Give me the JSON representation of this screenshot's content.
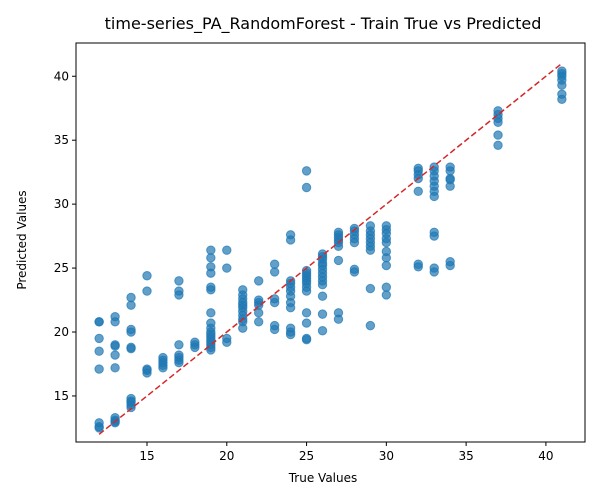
{
  "chart_data": {
    "type": "scatter",
    "title": "time-series_PA_RandomForest - Train True vs Predicted",
    "xlabel": "True Values",
    "ylabel": "Predicted Values",
    "xlim": [
      10.55,
      42.45
    ],
    "ylim": [
      11.4,
      42.6
    ],
    "xticks": [
      15,
      20,
      25,
      30,
      35,
      40
    ],
    "yticks": [
      15,
      20,
      25,
      30,
      35,
      40
    ],
    "grid": false,
    "point_color": "#1f77b4",
    "reference_line": {
      "x": [
        12,
        41
      ],
      "y": [
        12,
        41
      ],
      "color": "#d62728",
      "style": "dashed"
    },
    "points": [
      [
        12,
        12.5
      ],
      [
        12,
        12.6
      ],
      [
        12,
        12.9
      ],
      [
        12,
        17.1
      ],
      [
        12,
        18.5
      ],
      [
        12,
        19.5
      ],
      [
        12,
        20.8
      ],
      [
        12,
        20.8
      ],
      [
        13,
        12.9
      ],
      [
        13,
        13.0
      ],
      [
        13,
        13.1
      ],
      [
        13,
        13.3
      ],
      [
        13,
        17.2
      ],
      [
        13,
        18.2
      ],
      [
        13,
        18.9
      ],
      [
        13,
        19.0
      ],
      [
        13,
        20.8
      ],
      [
        13,
        21.2
      ],
      [
        14,
        14.1
      ],
      [
        14,
        14.3
      ],
      [
        14,
        14.5
      ],
      [
        14,
        14.6
      ],
      [
        14,
        14.8
      ],
      [
        14,
        18.7
      ],
      [
        14,
        18.8
      ],
      [
        14,
        20.0
      ],
      [
        14,
        20.2
      ],
      [
        14,
        22.1
      ],
      [
        14,
        22.7
      ],
      [
        15,
        16.8
      ],
      [
        15,
        17.0
      ],
      [
        15,
        17.1
      ],
      [
        15,
        23.2
      ],
      [
        15,
        24.4
      ],
      [
        16,
        17.2
      ],
      [
        16,
        17.4
      ],
      [
        16,
        17.6
      ],
      [
        16,
        17.8
      ],
      [
        16,
        18.0
      ],
      [
        17,
        17.6
      ],
      [
        17,
        17.8
      ],
      [
        17,
        18.0
      ],
      [
        17,
        18.2
      ],
      [
        17,
        19.0
      ],
      [
        17,
        22.9
      ],
      [
        17,
        23.2
      ],
      [
        17,
        24.0
      ],
      [
        18,
        18.8
      ],
      [
        18,
        19.0
      ],
      [
        18,
        19.2
      ],
      [
        19,
        18.6
      ],
      [
        19,
        18.8
      ],
      [
        19,
        19.0
      ],
      [
        19,
        19.2
      ],
      [
        19,
        19.4
      ],
      [
        19,
        19.6
      ],
      [
        19,
        19.8
      ],
      [
        19,
        20.0
      ],
      [
        19,
        20.3
      ],
      [
        19,
        20.7
      ],
      [
        19,
        21.5
      ],
      [
        19,
        23.3
      ],
      [
        19,
        23.5
      ],
      [
        19,
        24.6
      ],
      [
        19,
        25.1
      ],
      [
        19,
        25.8
      ],
      [
        19,
        26.4
      ],
      [
        20,
        19.2
      ],
      [
        20,
        19.5
      ],
      [
        20,
        25.0
      ],
      [
        20,
        26.4
      ],
      [
        21,
        20.3
      ],
      [
        21,
        20.8
      ],
      [
        21,
        21.0
      ],
      [
        21,
        21.3
      ],
      [
        21,
        21.6
      ],
      [
        21,
        21.9
      ],
      [
        21,
        22.1
      ],
      [
        21,
        22.3
      ],
      [
        21,
        22.6
      ],
      [
        21,
        22.9
      ],
      [
        21,
        23.3
      ],
      [
        22,
        20.8
      ],
      [
        22,
        21.5
      ],
      [
        22,
        22.1
      ],
      [
        22,
        22.3
      ],
      [
        22,
        22.5
      ],
      [
        22,
        24.0
      ],
      [
        23,
        20.2
      ],
      [
        23,
        20.5
      ],
      [
        23,
        22.3
      ],
      [
        23,
        22.6
      ],
      [
        23,
        24.7
      ],
      [
        23,
        25.3
      ],
      [
        24,
        19.8
      ],
      [
        24,
        20.0
      ],
      [
        24,
        20.3
      ],
      [
        24,
        21.9
      ],
      [
        24,
        22.3
      ],
      [
        24,
        22.8
      ],
      [
        24,
        23.2
      ],
      [
        24,
        23.5
      ],
      [
        24,
        23.8
      ],
      [
        24,
        24.0
      ],
      [
        24,
        27.2
      ],
      [
        24,
        27.6
      ],
      [
        25,
        19.4
      ],
      [
        25,
        19.5
      ],
      [
        25,
        20.7
      ],
      [
        25,
        21.5
      ],
      [
        25,
        23.2
      ],
      [
        25,
        23.5
      ],
      [
        25,
        23.8
      ],
      [
        25,
        24.0
      ],
      [
        25,
        24.2
      ],
      [
        25,
        24.4
      ],
      [
        25,
        24.6
      ],
      [
        25,
        24.8
      ],
      [
        25,
        31.3
      ],
      [
        25,
        32.6
      ],
      [
        26,
        20.1
      ],
      [
        26,
        21.4
      ],
      [
        26,
        22.8
      ],
      [
        26,
        23.7
      ],
      [
        26,
        24.0
      ],
      [
        26,
        24.3
      ],
      [
        26,
        24.6
      ],
      [
        26,
        24.9
      ],
      [
        26,
        25.2
      ],
      [
        26,
        25.4
      ],
      [
        26,
        25.7
      ],
      [
        26,
        25.9
      ],
      [
        26,
        26.1
      ],
      [
        27,
        21.0
      ],
      [
        27,
        21.5
      ],
      [
        27,
        25.6
      ],
      [
        27,
        26.7
      ],
      [
        27,
        27.0
      ],
      [
        27,
        27.2
      ],
      [
        27,
        27.4
      ],
      [
        27,
        27.6
      ],
      [
        27,
        27.8
      ],
      [
        28,
        24.7
      ],
      [
        28,
        24.9
      ],
      [
        28,
        27.0
      ],
      [
        28,
        27.3
      ],
      [
        28,
        27.6
      ],
      [
        28,
        27.9
      ],
      [
        28,
        28.1
      ],
      [
        29,
        20.5
      ],
      [
        29,
        23.4
      ],
      [
        29,
        26.4
      ],
      [
        29,
        26.7
      ],
      [
        29,
        27.0
      ],
      [
        29,
        27.3
      ],
      [
        29,
        27.6
      ],
      [
        29,
        27.9
      ],
      [
        29,
        28.3
      ],
      [
        30,
        22.9
      ],
      [
        30,
        23.5
      ],
      [
        30,
        25.2
      ],
      [
        30,
        25.8
      ],
      [
        30,
        26.3
      ],
      [
        30,
        27.0
      ],
      [
        30,
        27.3
      ],
      [
        30,
        27.7
      ],
      [
        30,
        28.0
      ],
      [
        30,
        28.3
      ],
      [
        32,
        25.1
      ],
      [
        32,
        25.3
      ],
      [
        32,
        31.0
      ],
      [
        32,
        32.0
      ],
      [
        32,
        32.3
      ],
      [
        32,
        32.6
      ],
      [
        32,
        32.8
      ],
      [
        33,
        24.7
      ],
      [
        33,
        25.0
      ],
      [
        33,
        27.5
      ],
      [
        33,
        27.8
      ],
      [
        33,
        30.6
      ],
      [
        33,
        31.0
      ],
      [
        33,
        31.4
      ],
      [
        33,
        31.8
      ],
      [
        33,
        32.2
      ],
      [
        33,
        32.6
      ],
      [
        33,
        32.9
      ],
      [
        34,
        25.2
      ],
      [
        34,
        25.5
      ],
      [
        34,
        31.4
      ],
      [
        34,
        31.9
      ],
      [
        34,
        32.0
      ],
      [
        34,
        32.6
      ],
      [
        34,
        32.9
      ],
      [
        37,
        34.6
      ],
      [
        37,
        35.4
      ],
      [
        37,
        36.4
      ],
      [
        37,
        36.7
      ],
      [
        37,
        37.0
      ],
      [
        37,
        37.3
      ],
      [
        41,
        38.2
      ],
      [
        41,
        38.6
      ],
      [
        41,
        39.3
      ],
      [
        41,
        39.7
      ],
      [
        41,
        40.0
      ],
      [
        41,
        40.2
      ],
      [
        41,
        40.4
      ]
    ]
  }
}
